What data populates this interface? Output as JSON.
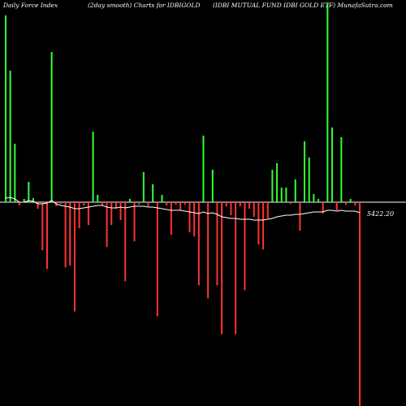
{
  "header": {
    "left_title": "Daily Force  Index",
    "center_title": "(2day smooth) Charts for IDBIGOLD",
    "right_title": "(IDBI MUTUAL FUND IDBI GOLD ETF) MunafaSutra.com"
  },
  "colors": {
    "background": "#000000",
    "positive_bar": "#33ff33",
    "negative_bar": "#ff3333",
    "zero_line": "#ffffff",
    "smooth_line": "#ffffff"
  },
  "chart_data": {
    "type": "bar",
    "title": "",
    "xlabel": "",
    "ylabel": "",
    "ylim": [
      -250,
      235
    ],
    "grid": false,
    "legend": "none",
    "last_value_label": "5422.20",
    "series": [
      {
        "values": [
          230,
          162,
          72,
          -4,
          4,
          25,
          5,
          -8,
          -59,
          -82,
          185,
          -5,
          -2,
          -80,
          -78,
          -134,
          -32,
          -4,
          -28,
          87,
          9,
          -4,
          -55,
          -28,
          -8,
          -22,
          -97,
          4,
          -48,
          -3,
          37,
          -5,
          22,
          -140,
          9,
          -4,
          -40,
          -3,
          -10,
          -3,
          -37,
          -42,
          -102,
          82,
          -118,
          40,
          -102,
          -162,
          -5,
          -16,
          -162,
          -5,
          -108,
          -8,
          -18,
          -52,
          -58,
          -20,
          40,
          48,
          18,
          18,
          -2,
          28,
          -35,
          75,
          55,
          10,
          4,
          -14,
          245,
          92,
          -10,
          80,
          -3,
          4,
          -4,
          -250
        ],
        "smooth": [
          5,
          6,
          4,
          0,
          0,
          2,
          1,
          -2,
          -2,
          -1,
          2,
          -2,
          -4,
          -5,
          -6,
          -8,
          -8,
          -7,
          -6,
          -5,
          -4,
          -4,
          -6,
          -7,
          -7,
          -6,
          -7,
          -6,
          -5,
          -5,
          -5,
          -6,
          -6,
          -7,
          -8,
          -9,
          -10,
          -10,
          -10,
          -11,
          -12,
          -13,
          -14,
          -12,
          -14,
          -13,
          -15,
          -18,
          -19,
          -20,
          -20,
          -21,
          -21,
          -21,
          -22,
          -22,
          -22,
          -21,
          -20,
          -18,
          -17,
          -16,
          -16,
          -15,
          -15,
          -14,
          -13,
          -12,
          -12,
          -12,
          -10,
          -10,
          -11,
          -10,
          -11,
          -11,
          -11,
          -13
        ]
      }
    ]
  }
}
